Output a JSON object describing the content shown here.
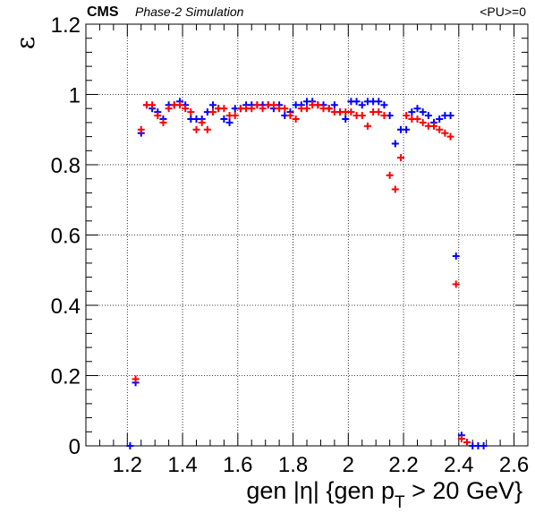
{
  "header": {
    "experiment": "CMS",
    "subtitle": "Phase-2 Simulation",
    "pileup": "<PU>=0"
  },
  "chart_data": {
    "type": "scatter",
    "title": "",
    "ylabel": "ε",
    "xlabel": {
      "prefix": "gen |η| {gen p",
      "subscript": "T",
      "suffix": " > 20 GeV}"
    },
    "xlim": [
      1.05,
      2.65
    ],
    "ylim": [
      0,
      1.2
    ],
    "xticks": [
      1.2,
      1.4,
      1.6,
      1.8,
      2,
      2.2,
      2.4,
      2.6
    ],
    "xticklabels": [
      "1.2",
      "1.4",
      "1.6",
      "1.8",
      "2",
      "2.2",
      "2.4",
      "2.6"
    ],
    "yticks": [
      0,
      0.2,
      0.4,
      0.6,
      0.8,
      1,
      1.2
    ],
    "yticklabels": [
      "0",
      "0.2",
      "0.4",
      "0.6",
      "0.8",
      "1",
      "1.2"
    ],
    "grid": true,
    "marker": "cross with error bars",
    "series": [
      {
        "color": "#0000ff",
        "x": [
          1.21,
          1.23,
          1.25,
          1.27,
          1.29,
          1.31,
          1.33,
          1.35,
          1.37,
          1.39,
          1.41,
          1.43,
          1.45,
          1.47,
          1.49,
          1.51,
          1.53,
          1.55,
          1.57,
          1.59,
          1.61,
          1.63,
          1.65,
          1.67,
          1.69,
          1.71,
          1.73,
          1.75,
          1.77,
          1.79,
          1.81,
          1.83,
          1.85,
          1.87,
          1.89,
          1.91,
          1.93,
          1.95,
          1.97,
          1.99,
          2.01,
          2.03,
          2.05,
          2.07,
          2.09,
          2.11,
          2.13,
          2.15,
          2.17,
          2.19,
          2.21,
          2.23,
          2.25,
          2.27,
          2.29,
          2.31,
          2.33,
          2.35,
          2.37,
          2.39,
          2.41,
          2.43,
          2.45,
          2.47,
          2.49
        ],
        "y": [
          0.0,
          0.18,
          0.89,
          0.97,
          0.96,
          0.95,
          0.93,
          0.97,
          0.97,
          0.98,
          0.97,
          0.93,
          0.93,
          0.93,
          0.95,
          0.97,
          0.96,
          0.93,
          0.92,
          0.96,
          0.96,
          0.97,
          0.97,
          0.97,
          0.97,
          0.97,
          0.96,
          0.97,
          0.94,
          0.95,
          0.97,
          0.97,
          0.98,
          0.98,
          0.97,
          0.97,
          0.96,
          0.97,
          0.95,
          0.93,
          0.98,
          0.98,
          0.97,
          0.98,
          0.98,
          0.98,
          0.97,
          0.94,
          0.86,
          0.9,
          0.9,
          0.95,
          0.96,
          0.95,
          0.94,
          0.92,
          0.93,
          0.94,
          0.94,
          0.54,
          0.03,
          0.01,
          0.0,
          0.0,
          0.0
        ]
      },
      {
        "color": "#ff0000",
        "x": [
          1.23,
          1.25,
          1.27,
          1.29,
          1.31,
          1.33,
          1.35,
          1.37,
          1.39,
          1.41,
          1.43,
          1.45,
          1.47,
          1.49,
          1.51,
          1.53,
          1.55,
          1.57,
          1.59,
          1.61,
          1.63,
          1.65,
          1.67,
          1.69,
          1.71,
          1.73,
          1.75,
          1.77,
          1.79,
          1.81,
          1.83,
          1.85,
          1.87,
          1.89,
          1.91,
          1.93,
          1.95,
          1.97,
          1.99,
          2.01,
          2.03,
          2.05,
          2.07,
          2.09,
          2.11,
          2.13,
          2.15,
          2.17,
          2.19,
          2.21,
          2.23,
          2.25,
          2.27,
          2.29,
          2.31,
          2.33,
          2.35,
          2.37,
          2.39,
          2.41,
          2.43
        ],
        "y": [
          0.19,
          0.9,
          0.97,
          0.97,
          0.94,
          0.92,
          0.96,
          0.97,
          0.97,
          0.96,
          0.95,
          0.9,
          0.92,
          0.9,
          0.95,
          0.96,
          0.96,
          0.94,
          0.94,
          0.96,
          0.96,
          0.96,
          0.97,
          0.96,
          0.97,
          0.97,
          0.96,
          0.96,
          0.94,
          0.93,
          0.96,
          0.96,
          0.97,
          0.97,
          0.96,
          0.96,
          0.95,
          0.95,
          0.95,
          0.95,
          0.94,
          0.94,
          0.91,
          0.95,
          0.95,
          0.94,
          0.77,
          0.73,
          0.82,
          0.94,
          0.93,
          0.93,
          0.92,
          0.91,
          0.91,
          0.9,
          0.89,
          0.88,
          0.46,
          0.02,
          0.01
        ]
      }
    ]
  }
}
